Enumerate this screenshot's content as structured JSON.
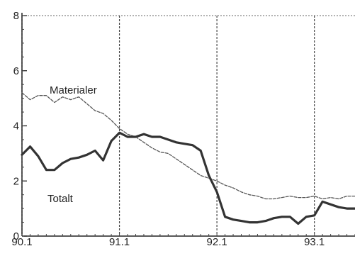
{
  "chart_data": {
    "type": "line",
    "title": "",
    "xlabel": "",
    "ylabel": "",
    "ylim": [
      0,
      8
    ],
    "y_ticks": [
      0,
      2,
      4,
      6,
      8
    ],
    "y_tick_labels": [
      "0",
      "2",
      "4",
      "6",
      "8"
    ],
    "x_ticks": [
      0,
      12,
      24,
      36
    ],
    "x_tick_labels": [
      "90.1",
      "91.1",
      "92.1",
      "93.1"
    ],
    "x_range": [
      0,
      41
    ],
    "grid": "vertical-dashed",
    "series": [
      {
        "name": "Materialer",
        "color": "#555555",
        "style": "dashed",
        "x": [
          0,
          1,
          2,
          3,
          4,
          5,
          6,
          7,
          8,
          9,
          10,
          11,
          12,
          13,
          14,
          15,
          16,
          17,
          18,
          19,
          20,
          21,
          22,
          23,
          24,
          25,
          26,
          27,
          28,
          29,
          30,
          31,
          32,
          33,
          34,
          35,
          36,
          37,
          38,
          39,
          40,
          41
        ],
        "values": [
          5.2,
          4.95,
          5.1,
          5.1,
          4.85,
          5.05,
          4.95,
          5.05,
          4.8,
          4.55,
          4.45,
          4.2,
          3.9,
          3.7,
          3.6,
          3.4,
          3.2,
          3.05,
          3.0,
          2.8,
          2.6,
          2.4,
          2.2,
          2.1,
          2.0,
          1.85,
          1.75,
          1.6,
          1.5,
          1.45,
          1.35,
          1.35,
          1.4,
          1.45,
          1.4,
          1.4,
          1.45,
          1.35,
          1.4,
          1.35,
          1.45,
          1.45
        ]
      },
      {
        "name": "Totalt",
        "color": "#333333",
        "style": "solid",
        "x": [
          0,
          1,
          2,
          3,
          4,
          5,
          6,
          7,
          8,
          9,
          10,
          11,
          12,
          13,
          14,
          15,
          16,
          17,
          18,
          19,
          20,
          21,
          22,
          23,
          24,
          25,
          26,
          27,
          28,
          29,
          30,
          31,
          32,
          33,
          34,
          35,
          36,
          37,
          38,
          39,
          40,
          41
        ],
        "values": [
          2.95,
          3.25,
          2.9,
          2.4,
          2.4,
          2.65,
          2.8,
          2.85,
          2.95,
          3.1,
          2.75,
          3.45,
          3.75,
          3.6,
          3.6,
          3.7,
          3.6,
          3.6,
          3.5,
          3.4,
          3.35,
          3.3,
          3.1,
          2.2,
          1.6,
          0.7,
          0.6,
          0.55,
          0.5,
          0.5,
          0.55,
          0.65,
          0.7,
          0.7,
          0.45,
          0.7,
          0.75,
          1.25,
          1.15,
          1.05,
          1.0,
          1.0
        ]
      }
    ],
    "annotations": [
      {
        "text": "Materialer",
        "series": "Materialer"
      },
      {
        "text": "Totalt",
        "series": "Totalt"
      }
    ]
  }
}
